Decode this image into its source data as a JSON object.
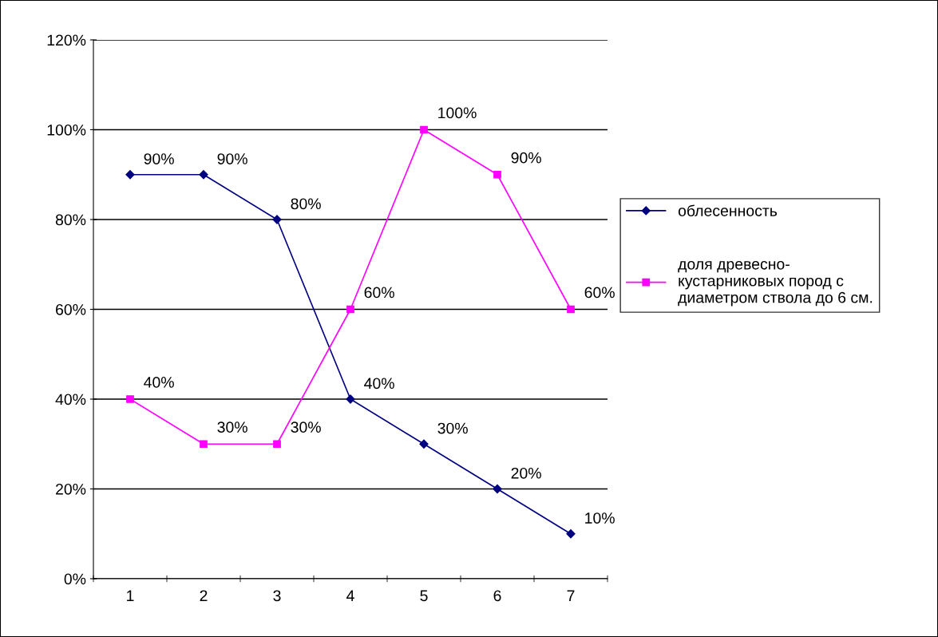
{
  "chart_data": {
    "type": "line",
    "categories": [
      "1",
      "2",
      "3",
      "4",
      "5",
      "6",
      "7"
    ],
    "series": [
      {
        "name": "облесенность",
        "color": "#000080",
        "marker": "diamond",
        "values": [
          90,
          90,
          80,
          40,
          30,
          20,
          10
        ],
        "value_labels": [
          "90%",
          "90%",
          "80%",
          "40%",
          "30%",
          "20%",
          "10%"
        ]
      },
      {
        "name": "доля древесно-\nкустарниковых пород с\nдиаметром ствола до 6 см.",
        "color": "#ff00ff",
        "marker": "square",
        "values": [
          40,
          30,
          30,
          60,
          100,
          90,
          60
        ],
        "value_labels": [
          "40%",
          "30%",
          "30%",
          "60%",
          "100%",
          "90%",
          "60%"
        ]
      }
    ],
    "ylim": [
      0,
      120
    ],
    "yticks": [
      {
        "value": 0,
        "label": "0%"
      },
      {
        "value": 20,
        "label": "20%"
      },
      {
        "value": 40,
        "label": "40%"
      },
      {
        "value": 60,
        "label": "60%"
      },
      {
        "value": 80,
        "label": "80%"
      },
      {
        "value": 100,
        "label": "100%"
      },
      {
        "value": 120,
        "label": "120%"
      }
    ],
    "grid": "y",
    "legend": "right",
    "line_style": "solid"
  }
}
